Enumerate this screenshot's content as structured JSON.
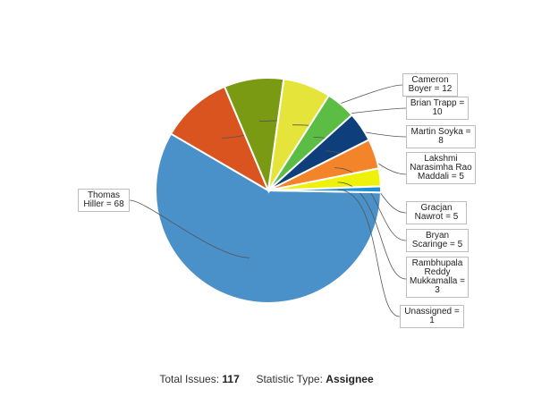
{
  "chart_data": {
    "type": "pie",
    "slices": [
      {
        "name": "Thomas Hiller",
        "value": 68,
        "label": "Thomas Hiller = 68",
        "color": "#4a90c9"
      },
      {
        "name": "Cameron Boyer",
        "value": 12,
        "label": "Cameron Boyer = 12",
        "color": "#d9541e"
      },
      {
        "name": "Brian Trapp",
        "value": 10,
        "label": "Brian Trapp = 10",
        "color": "#7a9a14"
      },
      {
        "name": "Martin Soyka",
        "value": 8,
        "label": "Martin Soyka = 8",
        "color": "#e4e43a"
      },
      {
        "name": "Lakshmi Narasimha Rao Maddali",
        "value": 5,
        "label": "Lakshmi Narasimha Rao Maddali = 5",
        "color": "#5bbd43"
      },
      {
        "name": "Gracjan Nawrot",
        "value": 5,
        "label": "Gracjan Nawrot = 5",
        "color": "#0e3f7a"
      },
      {
        "name": "Bryan Scaringe",
        "value": 5,
        "label": "Bryan Scaringe = 5",
        "color": "#f4842a"
      },
      {
        "name": "Rambhupala Reddy Mukkamalla",
        "value": 3,
        "label": "Rambhupala Reddy Mukkamalla = 3",
        "color": "#eef20b"
      },
      {
        "name": "Unassigned",
        "value": 1,
        "label": "Unassigned = 1",
        "color": "#1d8fd4"
      }
    ]
  },
  "footer": {
    "total_label": "Total Issues:",
    "total_value": "117",
    "stat_label": "Statistic Type:",
    "stat_value": "Assignee"
  }
}
